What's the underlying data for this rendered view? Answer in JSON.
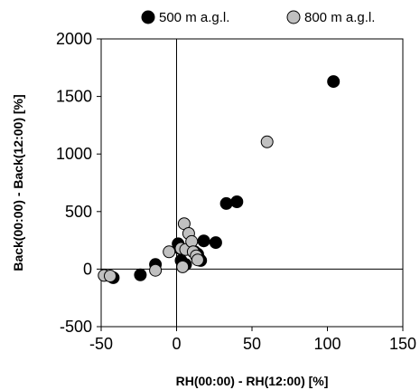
{
  "chart_data": {
    "type": "scatter",
    "title": "",
    "xlabel": "RH(00:00) - RH(12:00) [%]",
    "ylabel": "Back(00:00) - Back(12:00) [%]",
    "xlim": [
      -50,
      150
    ],
    "ylim": [
      -500,
      2000
    ],
    "xticks": [
      "-50",
      "0",
      "50",
      "100",
      "150"
    ],
    "yticks": [
      "-500",
      "0",
      "500",
      "1000",
      "1500",
      "2000"
    ],
    "grid": false,
    "legend_position": "top",
    "reference_lines": {
      "x": 0,
      "y": 0
    },
    "series": [
      {
        "name": "500 m a.g.l.",
        "color": "#000000",
        "points": [
          [
            -42,
            -75
          ],
          [
            -24,
            -50
          ],
          [
            -14,
            40
          ],
          [
            1,
            220
          ],
          [
            2,
            180
          ],
          [
            3,
            75
          ],
          [
            6,
            40
          ],
          [
            9,
            170
          ],
          [
            12,
            150
          ],
          [
            14,
            130
          ],
          [
            15,
            90
          ],
          [
            16,
            75
          ],
          [
            18,
            245
          ],
          [
            26,
            230
          ],
          [
            33,
            570
          ],
          [
            40,
            585
          ],
          [
            104,
            1630
          ]
        ]
      },
      {
        "name": "800 m a.g.l.",
        "color": "#c0c0c0",
        "points": [
          [
            -48,
            -55
          ],
          [
            -44,
            -60
          ],
          [
            -14,
            -10
          ],
          [
            -5,
            150
          ],
          [
            3,
            180
          ],
          [
            4,
            20
          ],
          [
            5,
            395
          ],
          [
            6,
            170
          ],
          [
            8,
            310
          ],
          [
            10,
            240
          ],
          [
            11,
            150
          ],
          [
            13,
            115
          ],
          [
            14,
            80
          ],
          [
            60,
            1105
          ]
        ]
      }
    ]
  }
}
